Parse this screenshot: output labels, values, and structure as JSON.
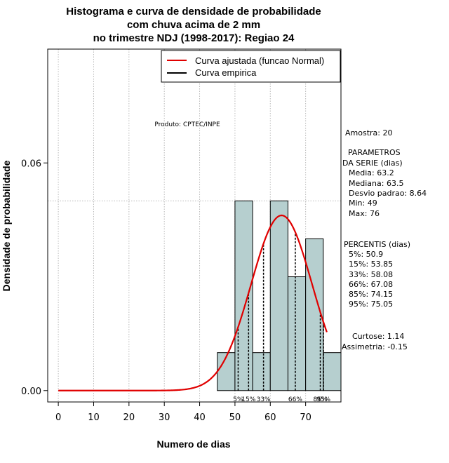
{
  "chart_data": {
    "type": "histogram",
    "title_lines": [
      "Histograma e curva de densidade de probabilidade",
      "com chuva acima de 2 mm",
      "no trimestre NDJ (1998-2017): Regiao 24"
    ],
    "xlabel": "Numero de dias",
    "ylabel": "Densidade de probabilidade",
    "xlim": [
      -3,
      80
    ],
    "ylim": [
      -0.003,
      0.09
    ],
    "x_ticks": [
      0,
      10,
      20,
      30,
      40,
      50,
      60,
      70
    ],
    "y_ticks": [
      0.0,
      0.06
    ],
    "y_tick_labels": [
      "0.00",
      "0.06"
    ],
    "x_grid": [
      0,
      10,
      20,
      30,
      40,
      50,
      60,
      70
    ],
    "grid": true,
    "bins": [
      {
        "start": 45,
        "end": 50,
        "density": 0.01
      },
      {
        "start": 50,
        "end": 55,
        "density": 0.05
      },
      {
        "start": 55,
        "end": 60,
        "density": 0.01
      },
      {
        "start": 60,
        "end": 65,
        "density": 0.05
      },
      {
        "start": 65,
        "end": 70,
        "density": 0.03
      },
      {
        "start": 70,
        "end": 75,
        "density": 0.04
      },
      {
        "start": 75,
        "end": 80,
        "density": 0.01
      }
    ],
    "max_density_line": 0.05,
    "normal_fit": {
      "mean": 63.2,
      "sd": 8.64,
      "x_from": 0,
      "x_to": 76
    },
    "percentile_lines": [
      50.9,
      53.85,
      58.08,
      67.08,
      74.15,
      75.05
    ],
    "percentile_labels": [
      {
        "text": "5%",
        "x": 50.9
      },
      {
        "text": "15%",
        "x": 53.85
      },
      {
        "text": "33%",
        "x": 58.08
      },
      {
        "text": "66%",
        "x": 67.08
      },
      {
        "text": "85%",
        "x": 74.15
      },
      {
        "text": "95%",
        "x": 75.05
      }
    ],
    "legend": {
      "position": "top-right",
      "entries": [
        {
          "label": "Curva ajustada (funcao Normal)",
          "color": "#e00000"
        },
        {
          "label": "Curva empirica",
          "color": "#000000"
        }
      ]
    },
    "product_label": "Produto: CPTEC/INPE",
    "bar_color": "#b6cfcf",
    "curve_color": "#e00000"
  },
  "stats_panel": {
    "amostra": "Amostra: 20",
    "parametros_title_1": "PARAMETROS",
    "parametros_title_2": "DA SERIE (dias)",
    "media": "Media: 63.2",
    "mediana": "Mediana: 63.5",
    "desvio": "Desvio padrao: 8.64",
    "min": "Min: 49",
    "max": "Max: 76",
    "percentis_title": "PERCENTIS (dias)",
    "p5": "5%: 50.9",
    "p15": "15%: 53.85",
    "p33": "33%: 58.08",
    "p66": "66%: 67.08",
    "p85": "85%: 74.15",
    "p95": "95%: 75.05",
    "curtose": "Curtose: 1.14",
    "assimetria": "Assimetria: -0.15"
  }
}
